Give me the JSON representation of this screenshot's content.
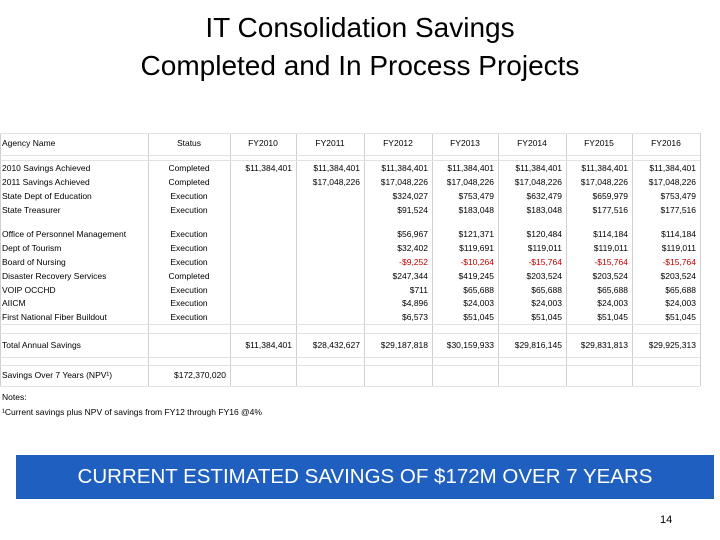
{
  "title": [
    "IT Consolidation Savings",
    "Completed and In Process Projects"
  ],
  "table": {
    "header": [
      "Agency Name",
      "Status",
      "FY2010",
      "FY2011",
      "FY2012",
      "FY2013",
      "FY2014",
      "FY2015",
      "FY2016"
    ],
    "rows": [
      [
        "2010 Savings Achieved",
        "Completed",
        "$11,384,401",
        "$11,384,401",
        "$11,384,401",
        "$11,384,401",
        "$11,384,401",
        "$11,384,401",
        "$11,384,401"
      ],
      [
        "2011 Savings Achieved",
        "Completed",
        null,
        "$17,048,226",
        "$17,048,226",
        "$17,048,226",
        "$17,048,226",
        "$17,048,226",
        "$17,048,226"
      ],
      [
        "State Dept of Education",
        "Execution",
        null,
        null,
        "$324,027",
        "$753,479",
        "$632,479",
        "$659,979",
        "$753,479"
      ],
      [
        "State Treasurer",
        "Execution",
        null,
        null,
        "$91,524",
        "$183,048",
        "$183,048",
        "$177,516",
        "$177,516"
      ],
      [
        "Office of Personnel Management",
        "Execution",
        null,
        null,
        "$56,967",
        "$121,371",
        "$120,484",
        "$114,184",
        "$114,184"
      ],
      [
        "Dept of Tourism",
        "Execution",
        null,
        null,
        "$32,402",
        "$119,691",
        "$119,011",
        "$119,011",
        "$119,011"
      ],
      [
        "Board of Nursing",
        "Execution",
        null,
        null,
        "-$9,252",
        "-$10,264",
        "-$15,764",
        "-$15,764",
        "-$15,764"
      ],
      [
        "Disaster Recovery Services",
        "Completed",
        null,
        null,
        "$247,344",
        "$419,245",
        "$203,524",
        "$203,524",
        "$203,524"
      ],
      [
        "VOIP OCCHD",
        "Execution",
        null,
        null,
        "$711",
        "$65,688",
        "$65,688",
        "$65,688",
        "$65,688"
      ],
      [
        "AIICM",
        "Execution",
        null,
        null,
        "$4,896",
        "$24,003",
        "$24,003",
        "$24,003",
        "$24,003"
      ],
      [
        "First National Fiber Buildout",
        "Execution",
        null,
        null,
        "$6,573",
        "$51,045",
        "$51,045",
        "$51,045",
        "$51,045"
      ]
    ],
    "total": [
      "Total Annual Savings",
      null,
      "$11,384,401",
      "$28,432,627",
      "$29,187,818",
      "$30,159,933",
      "$29,816,145",
      "$29,831,813",
      "$29,925,313"
    ],
    "npv": [
      "Savings Over 7 Years (NPV¹)",
      "$172,370,020"
    ]
  },
  "notes": [
    "Notes:",
    "¹Current savings plus NPV of savings from FY12 through FY16 @4%"
  ],
  "banner": "CURRENT ESTIMATED SAVINGS OF $172M OVER 7 YEARS",
  "page_number": "14"
}
